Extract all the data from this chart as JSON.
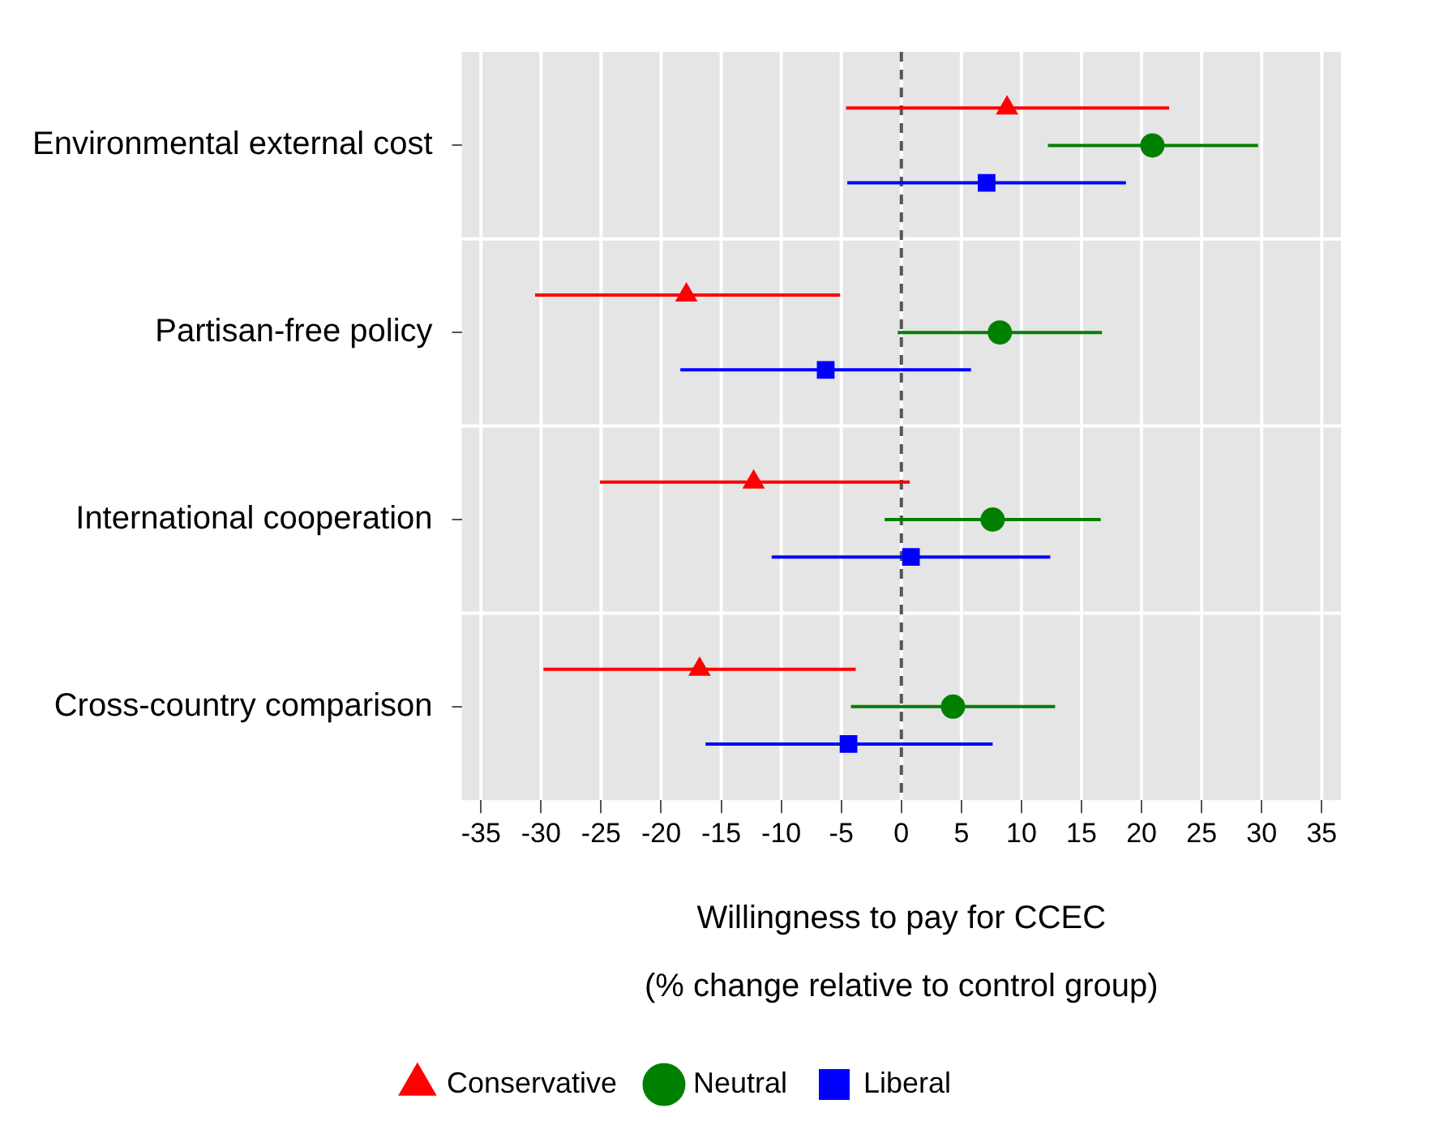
{
  "chart_data": {
    "type": "scatter",
    "orientation": "horizontal",
    "xlabel": "Willingness to pay for CCEC\n(% change relative to control group)",
    "categories": [
      "Environmental external cost",
      "Partisan-free policy",
      "International cooperation",
      "Cross-country comparison"
    ],
    "series": [
      {
        "name": "Conservative",
        "color": "#ff0000",
        "marker": "triangle",
        "values": [
          8.8,
          -17.9,
          -12.3,
          -16.8
        ],
        "errors": [
          [
            -4.6,
            22.3
          ],
          [
            -30.5,
            -5.1
          ],
          [
            -25.1,
            0.7
          ],
          [
            -29.8,
            -3.8
          ]
        ]
      },
      {
        "name": "Neutral",
        "color": "#008000",
        "marker": "circle",
        "values": [
          20.9,
          8.2,
          7.6,
          4.3
        ],
        "errors": [
          [
            12.2,
            29.7
          ],
          [
            -0.3,
            16.7
          ],
          [
            -1.4,
            16.6
          ],
          [
            -4.2,
            12.8
          ]
        ]
      },
      {
        "name": "Liberal",
        "color": "#0000ff",
        "marker": "square",
        "values": [
          7.1,
          -6.3,
          0.8,
          -4.4
        ],
        "errors": [
          [
            -4.5,
            18.7
          ],
          [
            -18.4,
            5.8
          ],
          [
            -10.8,
            12.4
          ],
          [
            -16.3,
            7.6
          ]
        ]
      }
    ],
    "xlim": [
      -36.6,
      36.6
    ],
    "xticks": [
      -35,
      -30,
      -25,
      -20,
      -15,
      -10,
      -5,
      0,
      5,
      10,
      15,
      20,
      25,
      30,
      35
    ],
    "ref_lines": [
      {
        "axis": "x",
        "value": 0,
        "color": "#555555",
        "line_style": "dashed"
      }
    ],
    "grid": true,
    "legend": "bottom"
  }
}
